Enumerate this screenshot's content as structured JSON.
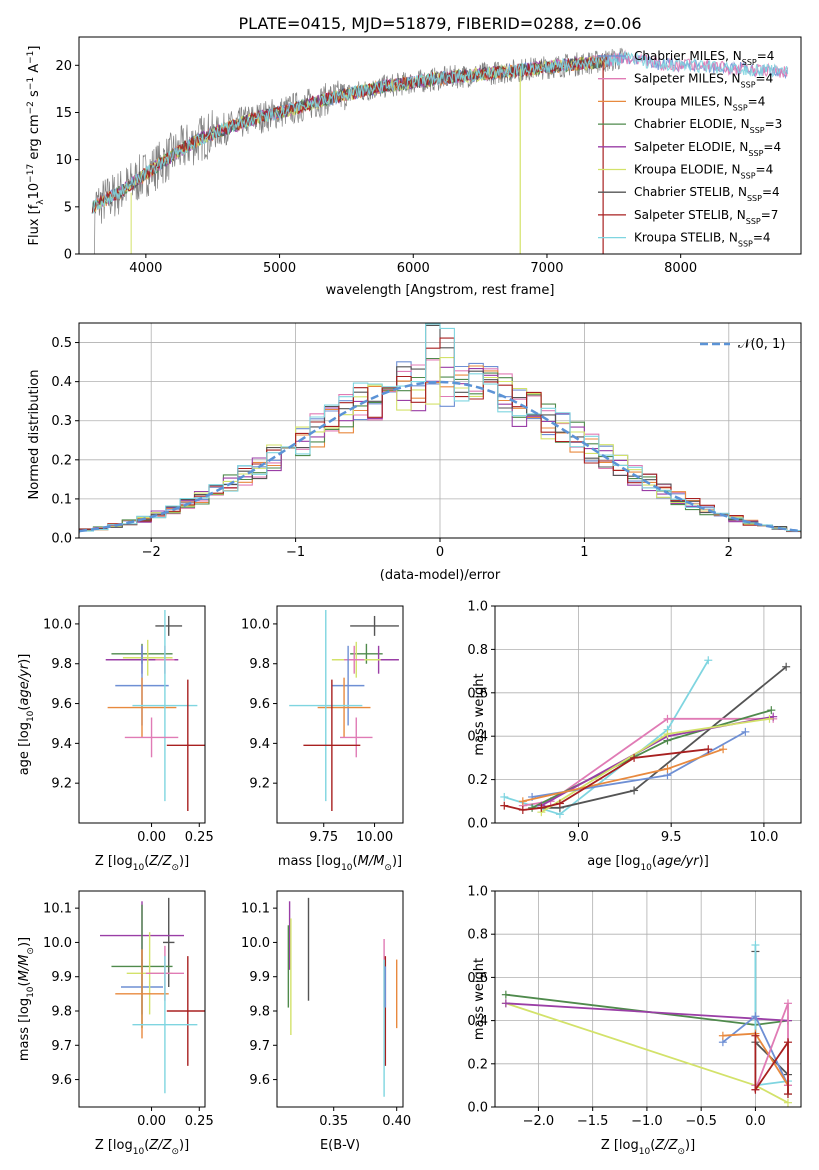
{
  "figure_title": "PLATE=0415, MJD=51879, FIBERID=0288, z=0.06",
  "colors": {
    "Chabrier MILES": "#6e8fd4",
    "Salpeter MILES": "#e07bb5",
    "Kroupa MILES": "#e8893e",
    "Chabrier ELODIE": "#4f8a4c",
    "Salpeter ELODIE": "#9a3ea6",
    "Kroupa ELODIE": "#d3e26a",
    "Chabrier STELIB": "#545454",
    "Salpeter STELIB": "#a82020",
    "Kroupa STELIB": "#7fd5e0",
    "data": "#808080",
    "normal": "#5b93d6"
  },
  "chart_data": [
    {
      "id": "spectrum",
      "type": "line",
      "xlabel": "wavelength [Angstrom, rest frame]",
      "ylabel": "Flux [f_λ10^-17 erg cm^-2 s^-1 A^-1]",
      "ylabel_parts": {
        "a": "Flux [f",
        "b": "λ",
        "c": "10",
        "d": "−17",
        "e": " erg cm",
        "f": "−2",
        "g": " s",
        "h": "−1",
        "i": " A",
        "j": "−1",
        "k": "]"
      },
      "xlim": [
        3500,
        8900
      ],
      "ylim": [
        0,
        23
      ],
      "xticks": [
        4000,
        5000,
        6000,
        7000,
        8000
      ],
      "yticks": [
        0,
        5,
        10,
        15,
        20
      ],
      "legend": [
        {
          "model": "Chabrier MILES",
          "label": "Chabrier MILES, N",
          "sub": "SSP",
          "tail": "=4"
        },
        {
          "model": "Salpeter MILES",
          "label": "Salpeter MILES, N",
          "sub": "SSP",
          "tail": "=4"
        },
        {
          "model": "Kroupa MILES",
          "label": "Kroupa MILES, N",
          "sub": "SSP",
          "tail": "=4"
        },
        {
          "model": "Chabrier ELODIE",
          "label": "Chabrier ELODIE, N",
          "sub": "SSP",
          "tail": "=3"
        },
        {
          "model": "Salpeter ELODIE",
          "label": "Salpeter ELODIE, N",
          "sub": "SSP",
          "tail": "=4"
        },
        {
          "model": "Kroupa ELODIE",
          "label": "Kroupa ELODIE, N",
          "sub": "SSP",
          "tail": "=4"
        },
        {
          "model": "Chabrier STELIB",
          "label": "Chabrier STELIB, N",
          "sub": "SSP",
          "tail": "=4"
        },
        {
          "model": "Salpeter STELIB",
          "label": "Salpeter STELIB, N",
          "sub": "SSP",
          "tail": "=7"
        },
        {
          "model": "Kroupa STELIB",
          "label": "Kroupa STELIB, N",
          "sub": "SSP",
          "tail": "=4"
        }
      ],
      "continuum": [
        [
          3600,
          5.0
        ],
        [
          3800,
          6.5
        ],
        [
          4000,
          8.5
        ],
        [
          4200,
          10.5
        ],
        [
          4400,
          12.2
        ],
        [
          4600,
          13.3
        ],
        [
          4800,
          14.3
        ],
        [
          5000,
          15.0
        ],
        [
          5200,
          15.8
        ],
        [
          5400,
          16.6
        ],
        [
          5600,
          17.2
        ],
        [
          5800,
          17.8
        ],
        [
          6000,
          18.2
        ],
        [
          6200,
          18.6
        ],
        [
          6400,
          18.9
        ],
        [
          6600,
          19.2
        ],
        [
          6800,
          19.5
        ],
        [
          7000,
          19.8
        ],
        [
          7200,
          20.1
        ],
        [
          7400,
          20.4
        ],
        [
          7600,
          20.8
        ],
        [
          7800,
          20.2
        ],
        [
          8000,
          20.0
        ],
        [
          8200,
          19.9
        ],
        [
          8400,
          19.7
        ],
        [
          8600,
          19.5
        ],
        [
          8800,
          19.3
        ]
      ]
    },
    {
      "id": "residuals",
      "type": "histogram",
      "xlabel": "(data-model)/error",
      "ylabel": "Normed distribution",
      "xlim": [
        -2.5,
        2.5
      ],
      "ylim": [
        0,
        0.55
      ],
      "xticks": [
        -2,
        -1,
        0,
        1,
        2
      ],
      "yticks": [
        0.0,
        0.1,
        0.2,
        0.3,
        0.4,
        0.5
      ],
      "legend_label": "𝒩(0, 1)",
      "bin_width": 0.1,
      "grid": true
    },
    {
      "id": "age-vs-Z",
      "type": "errorbar",
      "xlabel": "Z [log10(Z/Z⊙)]",
      "ylabel": "age [log10(age/yr)]",
      "xlim": [
        -0.38,
        0.28
      ],
      "ylim": [
        9.0,
        10.09
      ],
      "xticks": [
        0.0,
        0.25
      ],
      "yticks": [
        9.2,
        9.4,
        9.6,
        9.8,
        10.0
      ],
      "points": [
        {
          "model": "Chabrier STELIB",
          "x": 0.09,
          "xerr": 0.07,
          "y": 9.99,
          "yerr": 0.05
        },
        {
          "model": "Chabrier ELODIE",
          "x": -0.05,
          "xerr": 0.16,
          "y": 9.85,
          "yerr": 0.05
        },
        {
          "model": "Salpeter ELODIE",
          "x": -0.05,
          "xerr": 0.19,
          "y": 9.82,
          "yerr": 0.07
        },
        {
          "model": "Kroupa ELODIE",
          "x": -0.02,
          "xerr": 0.13,
          "y": 9.83,
          "yerr": 0.09
        },
        {
          "model": "Salpeter MILES",
          "x": 0.07,
          "xerr": 0.05,
          "y": 9.82,
          "yerr": 0.07
        },
        {
          "model": "Chabrier MILES",
          "x": -0.05,
          "xerr": 0.14,
          "y": 9.69,
          "yerr": 0.2
        },
        {
          "model": "Kroupa MILES",
          "x": -0.05,
          "xerr": 0.18,
          "y": 9.58,
          "yerr": 0.15
        },
        {
          "model": "Kroupa STELIB",
          "x": 0.07,
          "xerr": 0.17,
          "y": 9.59,
          "yerr": 0.48
        },
        {
          "model": "Salpeter MILES",
          "x": 0.0,
          "xerr": 0.14,
          "y": 9.43,
          "yerr": 0.1
        },
        {
          "model": "Salpeter STELIB",
          "x": 0.19,
          "xerr": 0.11,
          "y": 9.39,
          "yerr": 0.33
        }
      ]
    },
    {
      "id": "age-vs-mass",
      "type": "errorbar",
      "xlabel": "mass [log10(M/M⊙)]",
      "ylabel": "",
      "xlim": [
        9.52,
        10.14
      ],
      "ylim": [
        9.0,
        10.09
      ],
      "xticks": [
        9.75,
        10.0
      ],
      "yticks": [
        9.2,
        9.4,
        9.6,
        9.8,
        10.0
      ],
      "points": [
        {
          "model": "Chabrier STELIB",
          "x": 10.0,
          "xerr": 0.12,
          "y": 9.99,
          "yerr": 0.05
        },
        {
          "model": "Chabrier ELODIE",
          "x": 9.96,
          "xerr": 0.08,
          "y": 9.85,
          "yerr": 0.05
        },
        {
          "model": "Salpeter ELODIE",
          "x": 10.02,
          "xerr": 0.1,
          "y": 9.82,
          "yerr": 0.07
        },
        {
          "model": "Kroupa ELODIE",
          "x": 9.91,
          "xerr": 0.12,
          "y": 9.82,
          "yerr": 0.09
        },
        {
          "model": "Salpeter MILES",
          "x": 9.9,
          "xerr": 0.05,
          "y": 9.82,
          "yerr": 0.07
        },
        {
          "model": "Chabrier MILES",
          "x": 9.87,
          "xerr": 0.08,
          "y": 9.69,
          "yerr": 0.2
        },
        {
          "model": "Kroupa MILES",
          "x": 9.85,
          "xerr": 0.13,
          "y": 9.58,
          "yerr": 0.15
        },
        {
          "model": "Kroupa STELIB",
          "x": 9.76,
          "xerr": 0.18,
          "y": 9.59,
          "yerr": 0.48
        },
        {
          "model": "Salpeter MILES",
          "x": 9.91,
          "xerr": 0.08,
          "y": 9.43,
          "yerr": 0.1
        },
        {
          "model": "Salpeter STELIB",
          "x": 9.79,
          "xerr": 0.14,
          "y": 9.39,
          "yerr": 0.33
        }
      ]
    },
    {
      "id": "weight-vs-age",
      "type": "line",
      "xlabel": "age [log10(age/yr)]",
      "ylabel": "mass weight",
      "xlim": [
        8.55,
        10.2
      ],
      "ylim": [
        0,
        1.0
      ],
      "xticks": [
        9.0,
        9.5,
        10.0
      ],
      "yticks": [
        0.0,
        0.2,
        0.4,
        0.6,
        0.8,
        1.0
      ],
      "grid": true,
      "series": [
        {
          "model": "Kroupa STELIB",
          "x": [
            8.6,
            8.9,
            9.48,
            9.7
          ],
          "y": [
            0.12,
            0.04,
            0.43,
            0.75
          ]
        },
        {
          "model": "Chabrier STELIB",
          "x": [
            8.8,
            8.9,
            9.3,
            10.12
          ],
          "y": [
            0.07,
            0.07,
            0.15,
            0.72
          ]
        },
        {
          "model": "Salpeter MILES",
          "x": [
            8.7,
            8.85,
            9.48,
            10.05
          ],
          "y": [
            0.08,
            0.1,
            0.48,
            0.48
          ]
        },
        {
          "model": "Chabrier ELODIE",
          "x": [
            8.75,
            9.48,
            10.04
          ],
          "y": [
            0.07,
            0.38,
            0.52
          ]
        },
        {
          "model": "Salpeter ELODIE",
          "x": [
            8.8,
            9.48,
            10.05
          ],
          "y": [
            0.08,
            0.4,
            0.49
          ]
        },
        {
          "model": "Kroupa ELODIE",
          "x": [
            8.8,
            9.48,
            10.03
          ],
          "y": [
            0.05,
            0.41,
            0.48
          ]
        },
        {
          "model": "Chabrier MILES",
          "x": [
            8.75,
            9.48,
            9.9
          ],
          "y": [
            0.12,
            0.22,
            0.42
          ]
        },
        {
          "model": "Kroupa MILES",
          "x": [
            8.7,
            9.48,
            9.78
          ],
          "y": [
            0.1,
            0.25,
            0.34
          ]
        },
        {
          "model": "Salpeter STELIB",
          "x": [
            8.6,
            8.7,
            8.8,
            8.9,
            9.3,
            9.7
          ],
          "y": [
            0.08,
            0.06,
            0.07,
            0.09,
            0.3,
            0.34
          ]
        }
      ]
    },
    {
      "id": "mass-vs-Z",
      "type": "errorbar",
      "xlabel": "Z [log10(Z/Z⊙)]",
      "ylabel": "mass [log10(M/M⊙)]",
      "xlim": [
        -0.38,
        0.28
      ],
      "ylim": [
        9.52,
        10.15
      ],
      "xticks": [
        0.0,
        0.25
      ],
      "yticks": [
        9.6,
        9.7,
        9.8,
        9.9,
        10.0,
        10.1
      ],
      "points": [
        {
          "model": "Chabrier STELIB",
          "x": 0.09,
          "xerr": 0.03,
          "y": 10.0,
          "yerr": 0.13
        },
        {
          "model": "Salpeter ELODIE",
          "x": -0.05,
          "xerr": 0.22,
          "y": 10.02,
          "yerr": 0.1
        },
        {
          "model": "Chabrier MILES",
          "x": -0.05,
          "xerr": 0.11,
          "y": 9.87,
          "yerr": 0.08
        },
        {
          "model": "Chabrier ELODIE",
          "x": -0.05,
          "xerr": 0.16,
          "y": 9.93,
          "yerr": 0.18
        },
        {
          "model": "Kroupa ELODIE",
          "x": -0.01,
          "xerr": 0.12,
          "y": 9.91,
          "yerr": 0.12
        },
        {
          "model": "Salpeter MILES",
          "x": 0.07,
          "xerr": 0.1,
          "y": 9.91,
          "yerr": 0.08
        },
        {
          "model": "Kroupa MILES",
          "x": -0.05,
          "xerr": 0.14,
          "y": 9.85,
          "yerr": 0.13
        },
        {
          "model": "Salpeter STELIB",
          "x": 0.19,
          "xerr": 0.11,
          "y": 9.8,
          "yerr": 0.16
        },
        {
          "model": "Kroupa STELIB",
          "x": 0.07,
          "xerr": 0.17,
          "y": 9.76,
          "yerr": 0.2
        }
      ]
    },
    {
      "id": "mass-vs-EBV",
      "type": "errorbar",
      "xlabel": "E(B-V)",
      "ylabel": "",
      "xlim": [
        0.305,
        0.405
      ],
      "ylim": [
        9.52,
        10.15
      ],
      "xticks": [
        0.35,
        0.4
      ],
      "yticks": [
        9.6,
        9.7,
        9.8,
        9.9,
        10.0,
        10.1
      ],
      "points": [
        {
          "model": "Chabrier STELIB",
          "x": 0.33,
          "xerr": 0.0,
          "y": 9.98,
          "yerr": 0.15
        },
        {
          "model": "Salpeter ELODIE",
          "x": 0.315,
          "xerr": 0.0,
          "y": 10.02,
          "yerr": 0.1
        },
        {
          "model": "Chabrier ELODIE",
          "x": 0.314,
          "xerr": 0.0,
          "y": 9.93,
          "yerr": 0.12
        },
        {
          "model": "Kroupa ELODIE",
          "x": 0.316,
          "xerr": 0.0,
          "y": 9.9,
          "yerr": 0.17
        },
        {
          "model": "Salpeter MILES",
          "x": 0.39,
          "xerr": 0.0,
          "y": 9.91,
          "yerr": 0.1
        },
        {
          "model": "Kroupa MILES",
          "x": 0.4,
          "xerr": 0.0,
          "y": 9.85,
          "yerr": 0.1
        },
        {
          "model": "Salpeter STELIB",
          "x": 0.391,
          "xerr": 0.0,
          "y": 9.8,
          "yerr": 0.16
        },
        {
          "model": "Kroupa STELIB",
          "x": 0.39,
          "xerr": 0.0,
          "y": 9.75,
          "yerr": 0.2
        },
        {
          "model": "Chabrier MILES",
          "x": 0.391,
          "xerr": 0.0,
          "y": 9.87,
          "yerr": 0.06
        }
      ]
    },
    {
      "id": "weight-vs-Z",
      "type": "line",
      "xlabel": "Z [log10(Z/Z⊙)]",
      "ylabel": "mass weight",
      "xlim": [
        -2.4,
        0.42
      ],
      "ylim": [
        0,
        1.0
      ],
      "xticks": [
        -2.0,
        -1.5,
        -1.0,
        -0.5,
        0.0
      ],
      "yticks": [
        0.0,
        0.2,
        0.4,
        0.6,
        0.8,
        1.0
      ],
      "grid": true,
      "series": [
        {
          "model": "Chabrier ELODIE",
          "x": [
            -2.3,
            0.0,
            0.3
          ],
          "y": [
            0.52,
            0.38,
            0.4
          ]
        },
        {
          "model": "Kroupa ELODIE",
          "x": [
            -2.3,
            0.0,
            0.3
          ],
          "y": [
            0.48,
            0.1,
            0.02
          ]
        },
        {
          "model": "Salpeter ELODIE",
          "x": [
            -2.3,
            0.3
          ],
          "y": [
            0.48,
            0.4
          ]
        },
        {
          "model": "Chabrier STELIB",
          "x": [
            0.0,
            0.0,
            0.3,
            0.3
          ],
          "y": [
            0.72,
            0.3,
            0.15,
            0.06
          ]
        },
        {
          "model": "Kroupa STELIB",
          "x": [
            0.0,
            0.0,
            0.3
          ],
          "y": [
            0.75,
            0.1,
            0.12
          ]
        },
        {
          "model": "Chabrier MILES",
          "x": [
            -0.3,
            0.0,
            0.3
          ],
          "y": [
            0.3,
            0.42,
            0.1
          ]
        },
        {
          "model": "Kroupa MILES",
          "x": [
            -0.3,
            0.0,
            0.3
          ],
          "y": [
            0.33,
            0.34,
            0.1
          ]
        },
        {
          "model": "Salpeter MILES",
          "x": [
            0.0,
            0.0,
            0.3,
            0.3
          ],
          "y": [
            0.1,
            0.08,
            0.48,
            0.1
          ]
        },
        {
          "model": "Salpeter STELIB",
          "x": [
            0.0,
            0.0,
            0.3,
            0.3
          ],
          "y": [
            0.33,
            0.08,
            0.3,
            0.06
          ]
        }
      ]
    }
  ]
}
